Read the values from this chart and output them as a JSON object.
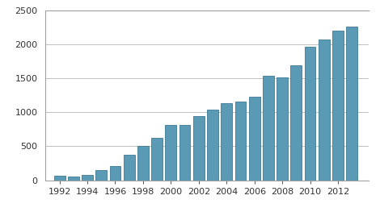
{
  "years": [
    1992,
    1993,
    1994,
    1995,
    1996,
    1997,
    1998,
    1999,
    2000,
    2001,
    2002,
    2003,
    2004,
    2005,
    2006,
    2007,
    2008,
    2009,
    2010,
    2011,
    2012,
    2013
  ],
  "values": [
    65,
    55,
    75,
    150,
    210,
    370,
    500,
    620,
    820,
    810,
    950,
    1040,
    1140,
    1160,
    1230,
    1540,
    1520,
    1690,
    1970,
    2070,
    2210,
    2260
  ],
  "bar_color": "#5b9ab5",
  "bar_edge_color": "#3d7a96",
  "background_color": "#ffffff",
  "plot_bg_color": "#ffffff",
  "ylim": [
    0,
    2500
  ],
  "yticks": [
    0,
    500,
    1000,
    1500,
    2000,
    2500
  ],
  "xtick_labels": [
    "1992",
    "1994",
    "1996",
    "1998",
    "2000",
    "2002",
    "2004",
    "2006",
    "2008",
    "2010",
    "2012"
  ],
  "xtick_positions": [
    1992,
    1994,
    1996,
    1998,
    2000,
    2002,
    2004,
    2006,
    2008,
    2010,
    2012
  ],
  "grid_color": "#c0c0c0",
  "spine_color": "#a0a0a0",
  "tick_fontsize": 8,
  "bar_width": 0.8
}
